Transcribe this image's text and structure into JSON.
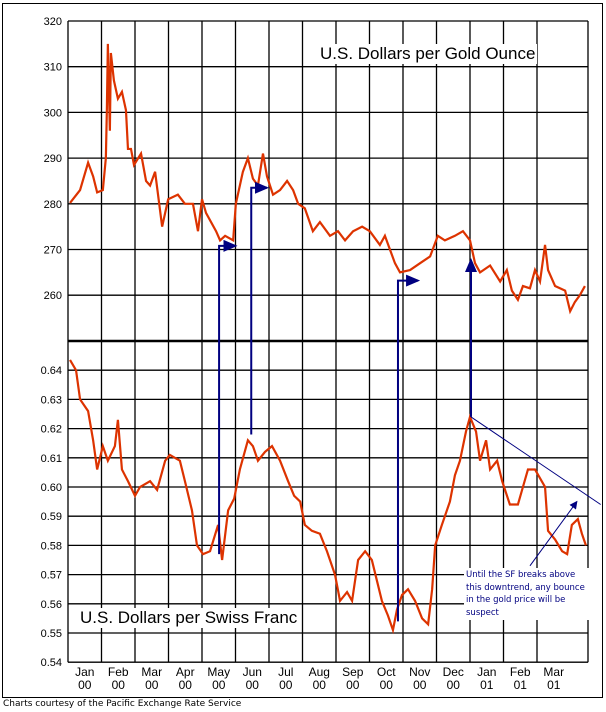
{
  "chart_data": [
    {
      "type": "line",
      "title": "U.S. Dollars per Gold Ounce",
      "ylim": [
        250,
        320
      ],
      "yticks": [
        "260",
        "270",
        "280",
        "290",
        "300",
        "310",
        "320"
      ],
      "xlim_months_from_jan_2000": [
        0,
        15.65
      ],
      "color": "#dd3300",
      "points": [
        [
          0.06,
          280.2
        ],
        [
          0.36,
          283
        ],
        [
          0.6,
          289
        ],
        [
          0.75,
          286
        ],
        [
          0.87,
          282.5
        ],
        [
          1.04,
          283
        ],
        [
          1.13,
          290
        ],
        [
          1.16,
          300.5
        ],
        [
          1.19,
          315
        ],
        [
          1.25,
          296
        ],
        [
          1.28,
          313
        ],
        [
          1.37,
          307
        ],
        [
          1.49,
          303
        ],
        [
          1.61,
          304.5
        ],
        [
          1.73,
          300.5
        ],
        [
          1.79,
          292
        ],
        [
          1.88,
          292
        ],
        [
          1.97,
          288.5
        ],
        [
          2.18,
          291
        ],
        [
          2.33,
          285
        ],
        [
          2.45,
          284
        ],
        [
          2.6,
          287
        ],
        [
          2.81,
          275
        ],
        [
          2.99,
          281
        ],
        [
          3.28,
          282
        ],
        [
          3.49,
          280
        ],
        [
          3.73,
          280
        ],
        [
          3.88,
          274
        ],
        [
          4.0,
          281
        ],
        [
          4.12,
          278
        ],
        [
          4.42,
          274
        ],
        [
          4.54,
          272
        ],
        [
          4.69,
          273
        ],
        [
          4.93,
          272
        ],
        [
          5.01,
          280
        ],
        [
          5.1,
          283
        ],
        [
          5.22,
          287
        ],
        [
          5.37,
          290
        ],
        [
          5.52,
          285.5
        ],
        [
          5.67,
          284
        ],
        [
          5.82,
          291
        ],
        [
          5.94,
          286
        ],
        [
          6.12,
          282
        ],
        [
          6.33,
          283
        ],
        [
          6.54,
          285
        ],
        [
          6.72,
          283
        ],
        [
          6.87,
          280
        ],
        [
          7.07,
          279
        ],
        [
          7.31,
          274
        ],
        [
          7.52,
          276
        ],
        [
          7.82,
          273
        ],
        [
          8.06,
          274
        ],
        [
          8.27,
          272
        ],
        [
          8.51,
          274
        ],
        [
          8.78,
          275
        ],
        [
          9.01,
          274
        ],
        [
          9.31,
          271
        ],
        [
          9.46,
          273
        ],
        [
          9.76,
          267
        ],
        [
          9.91,
          265
        ],
        [
          10.21,
          265.5
        ],
        [
          10.51,
          267
        ],
        [
          10.81,
          268.5
        ],
        [
          11.04,
          273
        ],
        [
          11.25,
          272
        ],
        [
          11.55,
          273
        ],
        [
          11.79,
          274
        ],
        [
          12.0,
          272
        ],
        [
          12.15,
          267
        ],
        [
          12.3,
          265
        ],
        [
          12.6,
          266.5
        ],
        [
          12.9,
          263
        ],
        [
          13.1,
          265.5
        ],
        [
          13.25,
          261
        ],
        [
          13.43,
          259
        ],
        [
          13.58,
          262
        ],
        [
          13.79,
          261.5
        ],
        [
          13.94,
          265.5
        ],
        [
          14.09,
          263
        ],
        [
          14.24,
          271
        ],
        [
          14.33,
          265.5
        ],
        [
          14.54,
          262
        ],
        [
          14.84,
          261
        ],
        [
          14.99,
          256.5
        ],
        [
          15.13,
          258.5
        ],
        [
          15.28,
          260
        ],
        [
          15.43,
          262
        ]
      ]
    },
    {
      "type": "line",
      "title": "U.S. Dollars per Swiss Franc",
      "ylim": [
        0.54,
        0.65
      ],
      "yticks": [
        "0.54",
        "0.55",
        "0.56",
        "0.57",
        "0.58",
        "0.59",
        "0.60",
        "0.61",
        "0.62",
        "0.63",
        "0.64"
      ],
      "xlim_months_from_jan_2000": [
        0,
        15.65
      ],
      "color": "#dd3300",
      "points": [
        [
          0.06,
          0.6435
        ],
        [
          0.24,
          0.64
        ],
        [
          0.36,
          0.63
        ],
        [
          0.6,
          0.626
        ],
        [
          0.75,
          0.616
        ],
        [
          0.87,
          0.606
        ],
        [
          1.04,
          0.614
        ],
        [
          1.19,
          0.609
        ],
        [
          1.4,
          0.614
        ],
        [
          1.49,
          0.623
        ],
        [
          1.61,
          0.606
        ],
        [
          1.79,
          0.602
        ],
        [
          2.0,
          0.597
        ],
        [
          2.15,
          0.6
        ],
        [
          2.45,
          0.602
        ],
        [
          2.66,
          0.599
        ],
        [
          2.9,
          0.609
        ],
        [
          3.04,
          0.611
        ],
        [
          3.34,
          0.609
        ],
        [
          3.49,
          0.602
        ],
        [
          3.7,
          0.592
        ],
        [
          3.85,
          0.58
        ],
        [
          4.03,
          0.577
        ],
        [
          4.24,
          0.578
        ],
        [
          4.48,
          0.587
        ],
        [
          4.6,
          0.575
        ],
        [
          4.78,
          0.592
        ],
        [
          4.96,
          0.596
        ],
        [
          5.13,
          0.606
        ],
        [
          5.37,
          0.616
        ],
        [
          5.52,
          0.614
        ],
        [
          5.67,
          0.609
        ],
        [
          5.88,
          0.612
        ],
        [
          6.09,
          0.614
        ],
        [
          6.33,
          0.609
        ],
        [
          6.57,
          0.602
        ],
        [
          6.75,
          0.597
        ],
        [
          6.93,
          0.595
        ],
        [
          7.07,
          0.587
        ],
        [
          7.28,
          0.585
        ],
        [
          7.52,
          0.584
        ],
        [
          7.73,
          0.578
        ],
        [
          7.97,
          0.57
        ],
        [
          8.12,
          0.561
        ],
        [
          8.33,
          0.564
        ],
        [
          8.48,
          0.561
        ],
        [
          8.66,
          0.575
        ],
        [
          8.87,
          0.578
        ],
        [
          9.07,
          0.575
        ],
        [
          9.22,
          0.568
        ],
        [
          9.37,
          0.561
        ],
        [
          9.55,
          0.556
        ],
        [
          9.7,
          0.551
        ],
        [
          9.82,
          0.558
        ],
        [
          9.97,
          0.563
        ],
        [
          10.15,
          0.565
        ],
        [
          10.36,
          0.561
        ],
        [
          10.57,
          0.555
        ],
        [
          10.75,
          0.553
        ],
        [
          10.87,
          0.565
        ],
        [
          10.96,
          0.58
        ],
        [
          11.16,
          0.587
        ],
        [
          11.4,
          0.595
        ],
        [
          11.55,
          0.604
        ],
        [
          11.7,
          0.609
        ],
        [
          11.88,
          0.619
        ],
        [
          12.0,
          0.624
        ],
        [
          12.18,
          0.619
        ],
        [
          12.3,
          0.609
        ],
        [
          12.48,
          0.616
        ],
        [
          12.6,
          0.606
        ],
        [
          12.81,
          0.609
        ],
        [
          12.96,
          0.602
        ],
        [
          13.19,
          0.594
        ],
        [
          13.43,
          0.594
        ],
        [
          13.58,
          0.6
        ],
        [
          13.73,
          0.606
        ],
        [
          13.94,
          0.606
        ],
        [
          14.24,
          0.6
        ],
        [
          14.33,
          0.585
        ],
        [
          14.54,
          0.582
        ],
        [
          14.75,
          0.578
        ],
        [
          14.9,
          0.577
        ],
        [
          15.04,
          0.587
        ],
        [
          15.22,
          0.589
        ],
        [
          15.34,
          0.584
        ],
        [
          15.46,
          0.58
        ]
      ]
    }
  ],
  "x_axis": {
    "months": [
      [
        "Jan",
        "00"
      ],
      [
        "Feb",
        "00"
      ],
      [
        "Mar",
        "00"
      ],
      [
        "Apr",
        "00"
      ],
      [
        "May",
        "00"
      ],
      [
        "Jun",
        "00"
      ],
      [
        "Jul",
        "00"
      ],
      [
        "Aug",
        "00"
      ],
      [
        "Sep",
        "00"
      ],
      [
        "Oct",
        "00"
      ],
      [
        "Nov",
        "00"
      ],
      [
        "Dec",
        "00"
      ],
      [
        "Jan",
        "01"
      ],
      [
        "Feb",
        "01"
      ],
      [
        "Mar",
        "01"
      ]
    ]
  },
  "annotations": {
    "color": "#000080",
    "arrows": [
      {
        "month": 4.51,
        "from_sf": 0.577,
        "to_gold": 270.8,
        "to_month": 5.0
      },
      {
        "month": 5.47,
        "from_sf": 0.618,
        "to_gold": 283.5,
        "to_month": 5.94
      },
      {
        "month": 9.85,
        "from_sf": 0.554,
        "to_gold": 263.2,
        "to_month": 10.45
      },
      {
        "month": 12.03,
        "from_sf": 0.624,
        "to_gold": 267.7,
        "to_month": null
      }
    ],
    "trendline": {
      "from": [
        12.03,
        0.624
      ],
      "to": [
        15.9,
        0.594
      ]
    },
    "pointer": {
      "from": [
        13.79,
        0.573
      ],
      "to": [
        15.19,
        0.595
      ]
    },
    "note": "Until the SF breaks above this downtrend, any bounce in the gold price will be suspect"
  },
  "credit": "Charts courtesy of the Pacific Exchange Rate Service"
}
